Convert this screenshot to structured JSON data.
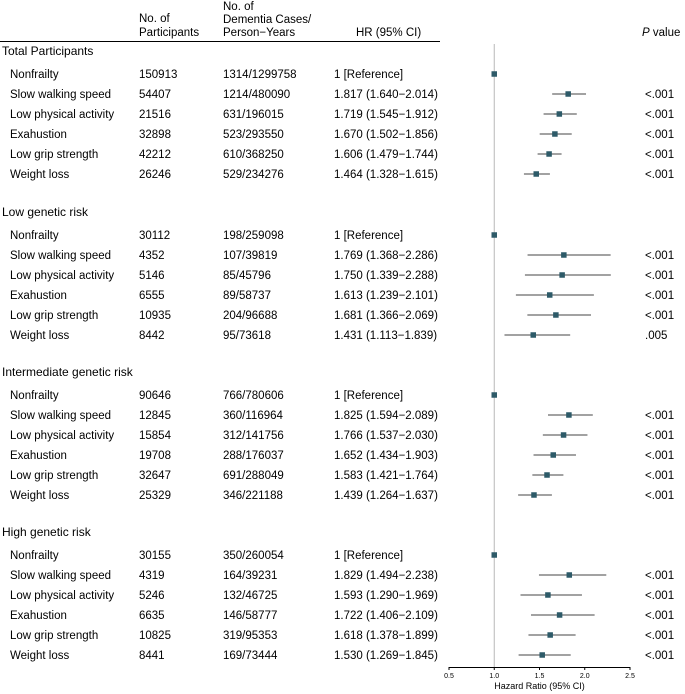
{
  "chart_data": {
    "type": "forest",
    "headers": {
      "participants": [
        "No. of",
        "Participants"
      ],
      "cases": [
        "No. of",
        "Dementia Cases/",
        "Person−Years"
      ],
      "hr": "HR (95% CI)",
      "p_italic": "P",
      "p_rest": " value"
    },
    "xlabel": "Hazard Ratio (95% CI)",
    "reference_line": 1,
    "xlim": [
      0.5,
      2.5
    ],
    "ticks": [
      "0.5",
      "1.0",
      "1.5",
      "2.0",
      "2.5"
    ],
    "point_color": "#2d5a68",
    "groups": [
      {
        "title": "Total Participants",
        "rows": [
          {
            "label": "Nonfrailty",
            "n": "150913",
            "cases": "1314/1299758",
            "hr_text": "1 [Reference]",
            "hr": 1,
            "lo": null,
            "hi": null,
            "p": ""
          },
          {
            "label": "Slow walking speed",
            "n": "54407",
            "cases": "1214/480090",
            "hr_text": "1.817 (1.640−2.014)",
            "hr": 1.817,
            "lo": 1.64,
            "hi": 2.014,
            "p": "<.001"
          },
          {
            "label": "Low physical activity",
            "n": "21516",
            "cases": "631/196015",
            "hr_text": "1.719 (1.545−1.912)",
            "hr": 1.719,
            "lo": 1.545,
            "hi": 1.912,
            "p": "<.001"
          },
          {
            "label": "Exahustion",
            "n": "32898",
            "cases": "523/293550",
            "hr_text": "1.670 (1.502−1.856)",
            "hr": 1.67,
            "lo": 1.502,
            "hi": 1.856,
            "p": "<.001"
          },
          {
            "label": "Low grip strength",
            "n": "42212",
            "cases": "610/368250",
            "hr_text": "1.606 (1.479−1.744)",
            "hr": 1.606,
            "lo": 1.479,
            "hi": 1.744,
            "p": "<.001"
          },
          {
            "label": "Weight loss",
            "n": "26246",
            "cases": "529/234276",
            "hr_text": "1.464 (1.328−1.615)",
            "hr": 1.464,
            "lo": 1.328,
            "hi": 1.615,
            "p": "<.001"
          }
        ]
      },
      {
        "title": "Low genetic risk",
        "rows": [
          {
            "label": "Nonfrailty",
            "n": "30112",
            "cases": "198/259098",
            "hr_text": "1 [Reference]",
            "hr": 1,
            "lo": null,
            "hi": null,
            "p": ""
          },
          {
            "label": "Slow walking speed",
            "n": "4352",
            "cases": "107/39819",
            "hr_text": "1.769 (1.368−2.286)",
            "hr": 1.769,
            "lo": 1.368,
            "hi": 2.286,
            "p": "<.001"
          },
          {
            "label": "Low physical activity",
            "n": "5146",
            "cases": "85/45796",
            "hr_text": "1.750 (1.339−2.288)",
            "hr": 1.75,
            "lo": 1.339,
            "hi": 2.288,
            "p": "<.001"
          },
          {
            "label": "Exahustion",
            "n": "6555",
            "cases": "89/58737",
            "hr_text": "1.613 (1.239−2.101)",
            "hr": 1.613,
            "lo": 1.239,
            "hi": 2.101,
            "p": "<.001"
          },
          {
            "label": "Low grip strength",
            "n": "10935",
            "cases": "204/96688",
            "hr_text": "1.681 (1.366−2.069)",
            "hr": 1.681,
            "lo": 1.366,
            "hi": 2.069,
            "p": "<.001"
          },
          {
            "label": "Weight loss",
            "n": "8442",
            "cases": "95/73618",
            "hr_text": "1.431 (1.113−1.839)",
            "hr": 1.431,
            "lo": 1.113,
            "hi": 1.839,
            "p": ".005"
          }
        ]
      },
      {
        "title": "Intermediate genetic risk",
        "rows": [
          {
            "label": "Nonfrailty",
            "n": "90646",
            "cases": "766/780606",
            "hr_text": "1 [Reference]",
            "hr": 1,
            "lo": null,
            "hi": null,
            "p": ""
          },
          {
            "label": "Slow walking speed",
            "n": "12845",
            "cases": "360/116964",
            "hr_text": "1.825 (1.594−2.089)",
            "hr": 1.825,
            "lo": 1.594,
            "hi": 2.089,
            "p": "<.001"
          },
          {
            "label": "Low physical activity",
            "n": "15854",
            "cases": "312/141756",
            "hr_text": "1.766 (1.537−2.030)",
            "hr": 1.766,
            "lo": 1.537,
            "hi": 2.03,
            "p": "<.001"
          },
          {
            "label": "Exahustion",
            "n": "19708",
            "cases": "288/176037",
            "hr_text": "1.652 (1.434−1.903)",
            "hr": 1.652,
            "lo": 1.434,
            "hi": 1.903,
            "p": "<.001"
          },
          {
            "label": "Low grip strength",
            "n": "32647",
            "cases": "691/288049",
            "hr_text": "1.583 (1.421−1.764)",
            "hr": 1.583,
            "lo": 1.421,
            "hi": 1.764,
            "p": "<.001"
          },
          {
            "label": "Weight loss",
            "n": "25329",
            "cases": "346/221188",
            "hr_text": "1.439 (1.264−1.637)",
            "hr": 1.439,
            "lo": 1.264,
            "hi": 1.637,
            "p": "<.001"
          }
        ]
      },
      {
        "title": "High genetic risk",
        "rows": [
          {
            "label": "Nonfrailty",
            "n": "30155",
            "cases": "350/260054",
            "hr_text": "1 [Reference]",
            "hr": 1,
            "lo": null,
            "hi": null,
            "p": ""
          },
          {
            "label": "Slow walking speed",
            "n": "4319",
            "cases": "164/39231",
            "hr_text": "1.829 (1.494−2.238)",
            "hr": 1.829,
            "lo": 1.494,
            "hi": 2.238,
            "p": "<.001"
          },
          {
            "label": "Low physical activity",
            "n": "5246",
            "cases": "132/46725",
            "hr_text": "1.593 (1.290−1.969)",
            "hr": 1.593,
            "lo": 1.29,
            "hi": 1.969,
            "p": "<.001"
          },
          {
            "label": "Exahustion",
            "n": "6635",
            "cases": "146/58777",
            "hr_text": "1.722 (1.406−2.109)",
            "hr": 1.722,
            "lo": 1.406,
            "hi": 2.109,
            "p": "<.001"
          },
          {
            "label": "Low grip strength",
            "n": "10825",
            "cases": "319/95353",
            "hr_text": "1.618 (1.378−1.899)",
            "hr": 1.618,
            "lo": 1.378,
            "hi": 1.899,
            "p": "<.001"
          },
          {
            "label": "Weight loss",
            "n": "8441",
            "cases": "169/73444",
            "hr_text": "1.530 (1.269−1.845)",
            "hr": 1.53,
            "lo": 1.269,
            "hi": 1.845,
            "p": "<.001"
          }
        ]
      }
    ]
  }
}
